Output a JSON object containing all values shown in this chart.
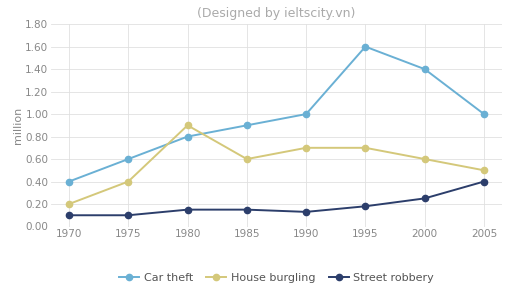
{
  "title": "(Designed by ieltscity.vn)",
  "title_fontsize": 9,
  "title_color": "#aaaaaa",
  "ylabel": "million",
  "years": [
    1970,
    1975,
    1980,
    1985,
    1990,
    1995,
    2000,
    2005
  ],
  "car_theft": [
    0.4,
    0.6,
    0.8,
    0.9,
    1.0,
    1.6,
    1.4,
    1.0
  ],
  "house_burgling": [
    0.2,
    0.4,
    0.9,
    0.6,
    0.7,
    0.7,
    0.6,
    0.5
  ],
  "street_robbery": [
    0.1,
    0.1,
    0.15,
    0.15,
    0.13,
    0.18,
    0.25,
    0.4
  ],
  "car_theft_color": "#6ab0d4",
  "house_burgling_color": "#d4c87a",
  "street_robbery_color": "#2c3e6b",
  "ylim": [
    0.0,
    1.8
  ],
  "yticks": [
    0.0,
    0.2,
    0.4,
    0.6,
    0.8,
    1.0,
    1.2,
    1.4,
    1.6,
    1.8
  ],
  "ytick_labels": [
    "0.00",
    "0.20",
    "0.40",
    "0.60",
    "0.80",
    "1.00",
    "1.20",
    "1.40",
    "1.60",
    "1.80"
  ],
  "background_color": "#ffffff",
  "grid_color": "#e0e0e0",
  "legend_labels": [
    "Car theft",
    "House burgling",
    "Street robbery"
  ],
  "marker": "o",
  "linewidth": 1.4,
  "markersize": 4.5
}
